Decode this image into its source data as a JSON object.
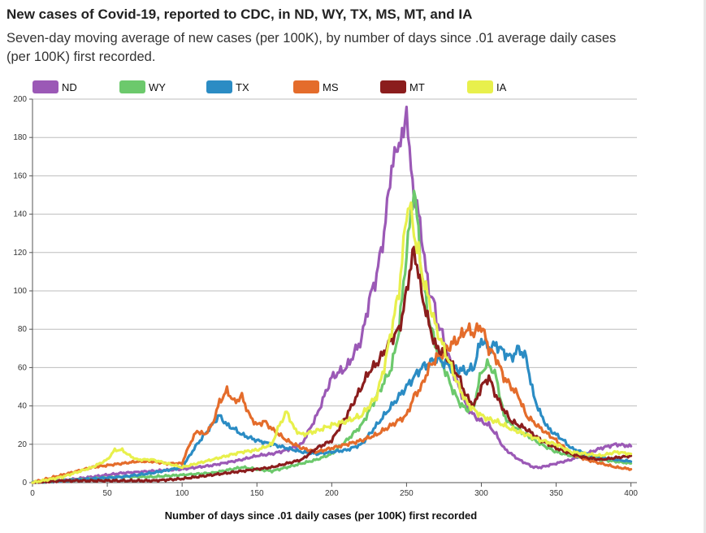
{
  "title": "New cases of Covid-19, reported to CDC, in ND, WY, TX, MS, MT, and IA",
  "subtitle": "Seven-day moving average of new cases (per 100K), by number of days since .01 average daily cases (per 100K) first recorded.",
  "chart_data": {
    "type": "line",
    "title": "New cases of Covid-19, reported to CDC, in ND, WY, TX, MS, MT, and IA",
    "xlabel": "Number of days since .01 daily cases (per 100K) first recorded",
    "ylabel": "",
    "xlim": [
      0,
      404
    ],
    "ylim": [
      0,
      200
    ],
    "xticks": [
      0,
      50,
      100,
      150,
      200,
      250,
      300,
      350,
      400
    ],
    "yticks": [
      0,
      20,
      40,
      60,
      80,
      100,
      120,
      140,
      160,
      180,
      200
    ],
    "grid": true,
    "legend_position": "top",
    "series": [
      {
        "name": "ND",
        "color": "#9b59b6",
        "x": [
          0,
          20,
          40,
          60,
          80,
          100,
          120,
          140,
          150,
          160,
          170,
          180,
          190,
          200,
          210,
          220,
          225,
          230,
          235,
          240,
          243,
          245,
          248,
          250,
          252,
          255,
          258,
          260,
          263,
          265,
          268,
          270,
          275,
          280,
          285,
          290,
          295,
          300,
          305,
          310,
          315,
          320,
          325,
          330,
          335,
          340,
          345,
          350,
          360,
          370,
          380,
          390,
          400
        ],
        "y": [
          0,
          1,
          3,
          5,
          6,
          7,
          9,
          12,
          14,
          15,
          17,
          20,
          35,
          55,
          60,
          75,
          95,
          108,
          130,
          165,
          172,
          178,
          180,
          198,
          170,
          150,
          140,
          130,
          110,
          100,
          95,
          85,
          75,
          60,
          50,
          40,
          35,
          32,
          30,
          25,
          18,
          15,
          12,
          10,
          8,
          8,
          9,
          10,
          12,
          15,
          18,
          20,
          19
        ]
      },
      {
        "name": "WY",
        "color": "#6cc96c",
        "x": [
          0,
          20,
          40,
          60,
          80,
          100,
          120,
          140,
          150,
          160,
          170,
          180,
          190,
          200,
          210,
          220,
          230,
          240,
          245,
          250,
          253,
          255,
          258,
          260,
          265,
          270,
          275,
          280,
          285,
          290,
          295,
          300,
          305,
          310,
          315,
          320,
          330,
          340,
          350,
          360,
          370,
          380,
          390,
          400
        ],
        "y": [
          0,
          1,
          2,
          3,
          3,
          4,
          5,
          8,
          7,
          6,
          8,
          10,
          12,
          15,
          22,
          30,
          45,
          60,
          80,
          120,
          140,
          154,
          130,
          110,
          85,
          70,
          60,
          50,
          42,
          38,
          40,
          58,
          62,
          55,
          35,
          30,
          25,
          20,
          16,
          14,
          13,
          12,
          11,
          10
        ]
      },
      {
        "name": "TX",
        "color": "#2b8cc4",
        "x": [
          0,
          20,
          40,
          60,
          80,
          100,
          110,
          120,
          125,
          130,
          135,
          140,
          150,
          160,
          170,
          180,
          190,
          200,
          210,
          220,
          230,
          240,
          245,
          250,
          255,
          260,
          265,
          270,
          280,
          290,
          295,
          300,
          305,
          310,
          315,
          320,
          325,
          330,
          335,
          340,
          345,
          350,
          355,
          360,
          370,
          380,
          390,
          400
        ],
        "y": [
          0,
          1,
          2,
          3,
          5,
          8,
          20,
          30,
          35,
          30,
          28,
          25,
          22,
          20,
          18,
          16,
          15,
          16,
          17,
          20,
          30,
          40,
          45,
          50,
          55,
          60,
          62,
          65,
          60,
          58,
          60,
          75,
          70,
          72,
          68,
          65,
          70,
          65,
          45,
          35,
          28,
          25,
          22,
          18,
          15,
          13,
          12,
          11
        ]
      },
      {
        "name": "MS",
        "color": "#e46c2b",
        "x": [
          0,
          10,
          20,
          30,
          40,
          50,
          60,
          70,
          80,
          90,
          100,
          105,
          110,
          115,
          120,
          125,
          130,
          135,
          140,
          145,
          150,
          155,
          160,
          165,
          170,
          175,
          180,
          190,
          200,
          210,
          220,
          230,
          240,
          250,
          255,
          260,
          265,
          270,
          275,
          280,
          285,
          290,
          295,
          300,
          305,
          310,
          315,
          320,
          325,
          330,
          340,
          350,
          360,
          370,
          380,
          390,
          400
        ],
        "y": [
          0,
          2,
          4,
          6,
          8,
          9,
          10,
          11,
          11,
          10,
          10,
          20,
          27,
          25,
          30,
          42,
          48,
          42,
          45,
          35,
          30,
          32,
          28,
          25,
          22,
          20,
          18,
          16,
          18,
          20,
          22,
          25,
          30,
          35,
          45,
          50,
          60,
          65,
          68,
          72,
          75,
          80,
          78,
          82,
          70,
          65,
          55,
          50,
          45,
          35,
          28,
          22,
          15,
          12,
          10,
          8,
          7
        ]
      },
      {
        "name": "MT",
        "color": "#8b1d1d",
        "x": [
          0,
          20,
          40,
          60,
          80,
          100,
          120,
          140,
          160,
          180,
          190,
          200,
          210,
          220,
          225,
          230,
          235,
          240,
          245,
          248,
          250,
          252,
          255,
          258,
          260,
          263,
          265,
          268,
          270,
          275,
          280,
          285,
          290,
          295,
          300,
          305,
          310,
          315,
          320,
          330,
          340,
          350,
          360,
          370,
          380,
          390,
          400
        ],
        "y": [
          0,
          1,
          1,
          1,
          1,
          2,
          4,
          6,
          8,
          12,
          18,
          22,
          35,
          50,
          58,
          62,
          68,
          75,
          80,
          90,
          100,
          110,
          121,
          110,
          98,
          90,
          82,
          75,
          70,
          68,
          62,
          55,
          45,
          40,
          50,
          55,
          45,
          38,
          32,
          28,
          22,
          18,
          15,
          13,
          12,
          13,
          14
        ]
      },
      {
        "name": "IA",
        "color": "#e8f04c",
        "x": [
          0,
          20,
          40,
          50,
          55,
          60,
          65,
          70,
          80,
          90,
          100,
          110,
          120,
          130,
          140,
          150,
          160,
          165,
          170,
          175,
          180,
          190,
          200,
          210,
          220,
          230,
          235,
          240,
          245,
          250,
          252,
          255,
          258,
          260,
          265,
          270,
          275,
          280,
          285,
          290,
          295,
          300,
          305,
          310,
          320,
          330,
          340,
          350,
          360,
          370,
          380,
          390,
          400
        ],
        "y": [
          0,
          3,
          8,
          12,
          17,
          17,
          14,
          12,
          12,
          10,
          8,
          10,
          12,
          14,
          16,
          17,
          20,
          30,
          37,
          28,
          25,
          27,
          30,
          32,
          35,
          45,
          60,
          80,
          100,
          140,
          146,
          130,
          120,
          110,
          95,
          80,
          70,
          60,
          50,
          42,
          38,
          35,
          33,
          32,
          28,
          25,
          22,
          20,
          16,
          15,
          14,
          16,
          15
        ]
      }
    ]
  }
}
